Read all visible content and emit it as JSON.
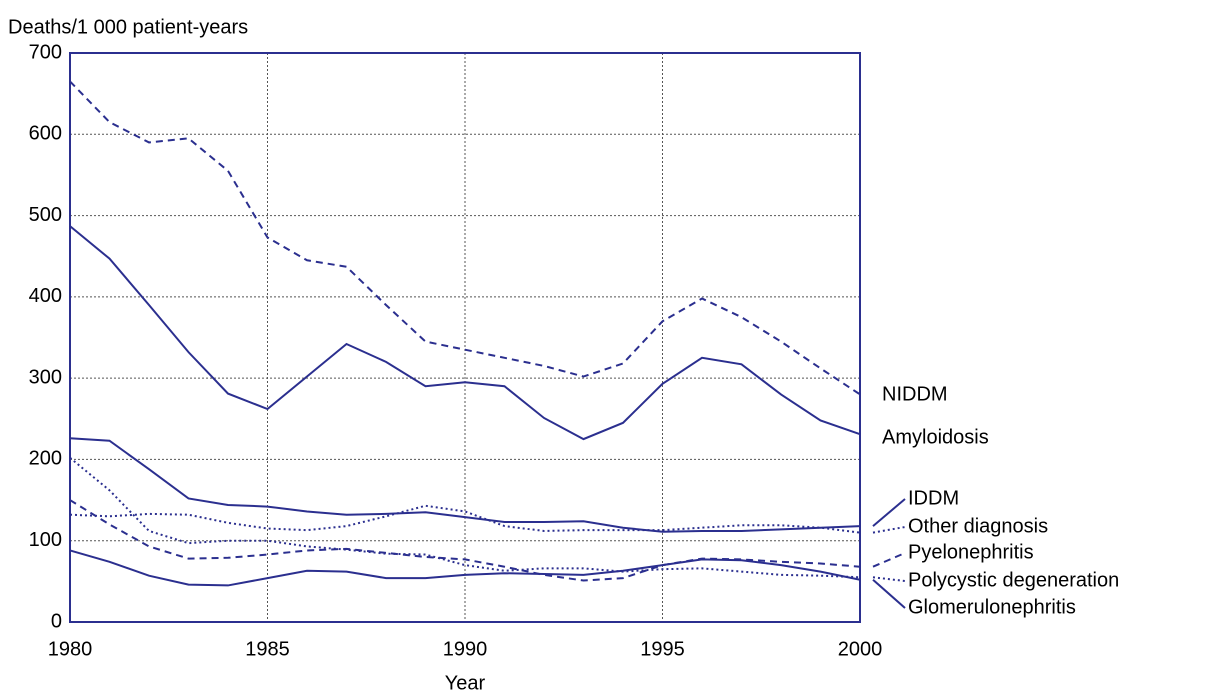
{
  "chart_data": {
    "type": "line",
    "y_label": "Deaths/1 000 patient-years",
    "x_label": "Year",
    "x": [
      1980,
      1981,
      1982,
      1983,
      1984,
      1985,
      1986,
      1987,
      1988,
      1989,
      1990,
      1991,
      1992,
      1993,
      1994,
      1995,
      1996,
      1997,
      1998,
      1999,
      2000
    ],
    "xlim": [
      1980,
      2000
    ],
    "xticks": [
      1980,
      1985,
      1990,
      1995,
      2000
    ],
    "ylim": [
      0,
      700
    ],
    "yticks": [
      0,
      100,
      200,
      300,
      400,
      500,
      600,
      700
    ],
    "grid": true,
    "series": [
      {
        "name": "NIDDM",
        "color": "#2b2f8f",
        "style": "dashed",
        "values": [
          665,
          615,
          590,
          595,
          555,
          473,
          445,
          437,
          390,
          345,
          335,
          325,
          315,
          302,
          318,
          370,
          398,
          375,
          345,
          312,
          280
        ]
      },
      {
        "name": "Amyloidosis",
        "color": "#2b2f8f",
        "style": "solid",
        "values": [
          487,
          447,
          390,
          332,
          281,
          262,
          302,
          342,
          320,
          290,
          295,
          290,
          251,
          225,
          245,
          293,
          325,
          317,
          280,
          248,
          231
        ]
      },
      {
        "name": "IDDM",
        "color": "#2b2f8f",
        "style": "solid",
        "values": [
          226,
          223,
          188,
          152,
          144,
          142,
          136,
          132,
          133,
          135,
          129,
          123,
          123,
          124,
          116,
          111,
          112,
          112,
          114,
          116,
          118
        ]
      },
      {
        "name": "Other diagnosis",
        "color": "#2b2f8f",
        "style": "dotted",
        "values": [
          132,
          130,
          133,
          132,
          122,
          115,
          113,
          118,
          130,
          143,
          136,
          118,
          112,
          113,
          113,
          113,
          116,
          119,
          119,
          116,
          110
        ]
      },
      {
        "name": "Pyelonephritis",
        "color": "#2b2f8f",
        "style": "dashed",
        "values": [
          150,
          120,
          93,
          78,
          79,
          83,
          88,
          90,
          85,
          80,
          77,
          68,
          58,
          51,
          54,
          70,
          78,
          77,
          74,
          72,
          68
        ]
      },
      {
        "name": "Polycystic degeneration",
        "color": "#2b2f8f",
        "style": "dotted",
        "values": [
          202,
          162,
          112,
          97,
          100,
          100,
          93,
          89,
          84,
          83,
          70,
          63,
          66,
          66,
          62,
          65,
          66,
          62,
          58,
          57,
          55
        ]
      },
      {
        "name": "Glomerulonephritis",
        "color": "#2b2f8f",
        "style": "solid",
        "values": [
          88,
          74,
          57,
          46,
          45,
          54,
          63,
          62,
          54,
          54,
          58,
          60,
          59,
          58,
          63,
          70,
          77,
          76,
          70,
          62,
          52
        ]
      }
    ]
  }
}
